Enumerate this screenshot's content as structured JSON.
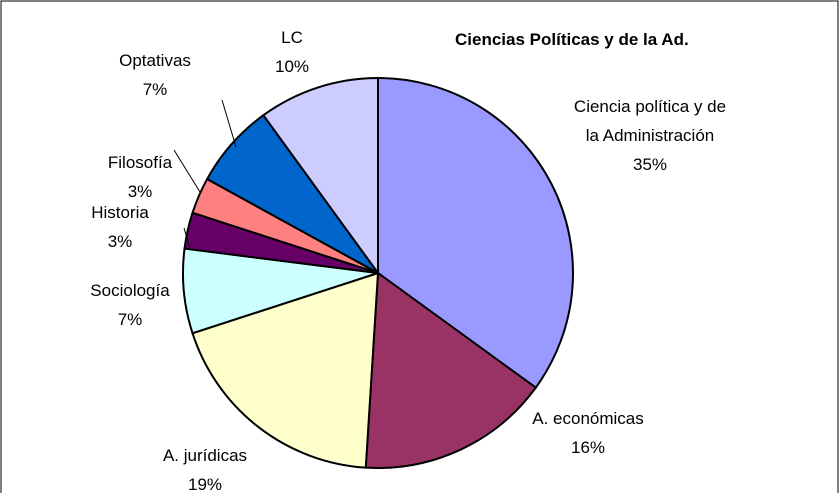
{
  "chart_data": {
    "type": "pie",
    "title": "Ciencias Políticas y de la Ad.",
    "categories": [
      "Ciencia política y de la Administración",
      "A. económicas",
      "A. jurídicas",
      "Sociología",
      "Historia",
      "Filosofía",
      "Optativas",
      "LC"
    ],
    "values": [
      35,
      16,
      19,
      7,
      3,
      3,
      7,
      10
    ],
    "value_labels": [
      "35%",
      "16%",
      "19%",
      "7%",
      "3%",
      "3%",
      "7%",
      "10%"
    ],
    "colors": [
      "#9999ff",
      "#993366",
      "#ffffcc",
      "#ccffff",
      "#660066",
      "#ff8080",
      "#0066cc",
      "#ccccff"
    ]
  }
}
